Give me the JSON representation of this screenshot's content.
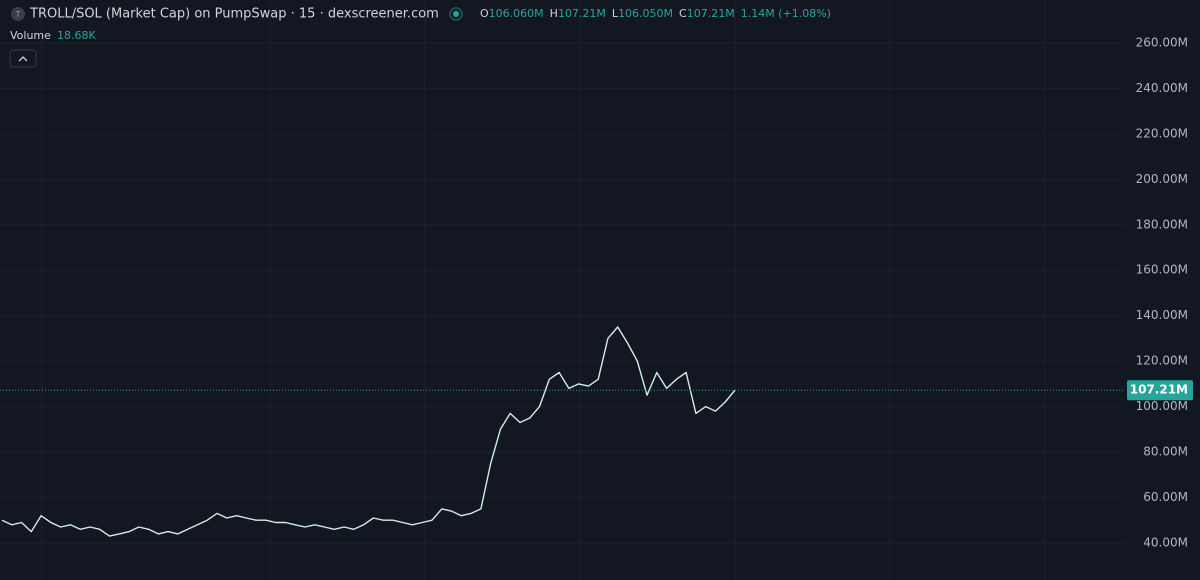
{
  "header": {
    "title": "TROLL/SOL (Market Cap) on PumpSwap · 15 · dexscreener.com",
    "icon_letter": "T",
    "ohlc": [
      {
        "key": "O",
        "value": "106.060M"
      },
      {
        "key": "H",
        "value": "107.21M"
      },
      {
        "key": "L",
        "value": "106.050M"
      },
      {
        "key": "C",
        "value": "107.21M"
      }
    ],
    "change": "1.14M (+1.08%)",
    "volume_label": "Volume",
    "volume_value": "18.68K"
  },
  "chart_data": {
    "type": "line",
    "color": "#cfeee5",
    "values": [
      50,
      48,
      49,
      45,
      52,
      49,
      47,
      48,
      46,
      47,
      46,
      43,
      44,
      45,
      47,
      46,
      44,
      45,
      44,
      46,
      48,
      50,
      53,
      51,
      52,
      51,
      50,
      50,
      49,
      49,
      48,
      47,
      48,
      47,
      46,
      47,
      46,
      48,
      51,
      50,
      50,
      49,
      48,
      49,
      50,
      55,
      54,
      52,
      53,
      55,
      75,
      90,
      97,
      93,
      95,
      100,
      112,
      115,
      108,
      110,
      109,
      112,
      130,
      135,
      128,
      120,
      105,
      115,
      108,
      112,
      115,
      97,
      100,
      98,
      102,
      107.21
    ],
    "ylim": [
      23.7,
      278.9
    ],
    "yticks": [
      {
        "value": 40,
        "label": "40.00M"
      },
      {
        "value": 60,
        "label": "60.00M"
      },
      {
        "value": 80,
        "label": "80.00M"
      },
      {
        "value": 100,
        "label": "100.00M"
      },
      {
        "value": 120,
        "label": "120.00M"
      },
      {
        "value": 140,
        "label": "140.00M"
      },
      {
        "value": 160,
        "label": "160.00M"
      },
      {
        "value": 180,
        "label": "180.00M"
      },
      {
        "value": 200,
        "label": "200.00M"
      },
      {
        "value": 220,
        "label": "220.00M"
      },
      {
        "value": 240,
        "label": "240.00M"
      },
      {
        "value": 260,
        "label": "260.00M"
      }
    ],
    "grid": true,
    "price_line": {
      "value": 107.21,
      "label": "107.21M",
      "color": "#26a69a"
    }
  }
}
